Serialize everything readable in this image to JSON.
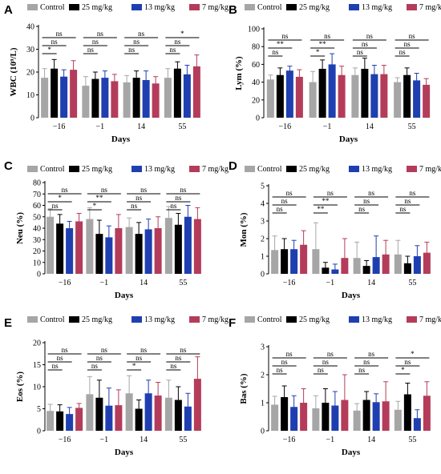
{
  "chart_data": [
    {
      "panel": "A",
      "type": "bar",
      "ylabel": "WBC (10⁹/L)",
      "xlabel": "Days",
      "categories": [
        "−16",
        "−1",
        "14",
        "55"
      ],
      "ylim": [
        0,
        40
      ],
      "yticks": [
        0,
        10,
        20,
        30,
        40
      ],
      "series": [
        {
          "name": "Control",
          "values": [
            17.5,
            14.0,
            15.5,
            17.5
          ],
          "errors": [
            4,
            4,
            3,
            4
          ]
        },
        {
          "name": "25 mg/kg",
          "values": [
            21.5,
            17.0,
            17.5,
            21.5
          ],
          "errors": [
            4,
            3,
            3,
            3
          ]
        },
        {
          "name": "13 mg/kg",
          "values": [
            18.0,
            17.5,
            16.5,
            19.0
          ],
          "errors": [
            3,
            3,
            4,
            4
          ]
        },
        {
          "name": "7 mg/kg",
          "values": [
            21.0,
            16.0,
            15.0,
            22.5
          ],
          "errors": [
            4,
            3,
            3,
            5
          ]
        }
      ],
      "significance": [
        {
          "group": 0,
          "left": 0,
          "right": 1,
          "text": "*"
        },
        {
          "group": 0,
          "left": 0,
          "right": 2,
          "text": "ns"
        },
        {
          "group": 0,
          "left": 0,
          "right": 3,
          "text": "ns"
        },
        {
          "group": 1,
          "left": 0,
          "right": 1,
          "text": "ns"
        },
        {
          "group": 1,
          "left": 0,
          "right": 2,
          "text": "ns"
        },
        {
          "group": 1,
          "left": 0,
          "right": 3,
          "text": "ns"
        },
        {
          "group": 2,
          "left": 0,
          "right": 1,
          "text": "ns"
        },
        {
          "group": 2,
          "left": 0,
          "right": 2,
          "text": "ns"
        },
        {
          "group": 2,
          "left": 0,
          "right": 3,
          "text": "ns"
        },
        {
          "group": 3,
          "left": 0,
          "right": 1,
          "text": "ns"
        },
        {
          "group": 3,
          "left": 0,
          "right": 2,
          "text": "ns"
        },
        {
          "group": 3,
          "left": 0,
          "right": 3,
          "text": "*"
        }
      ]
    },
    {
      "panel": "B",
      "type": "bar",
      "ylabel": "Lym (%)",
      "xlabel": "Days",
      "categories": [
        "−16",
        "−1",
        "14",
        "55"
      ],
      "ylim": [
        0,
        100
      ],
      "yticks": [
        0,
        20,
        40,
        60,
        80,
        100
      ],
      "series": [
        {
          "name": "Control",
          "values": [
            43,
            40,
            48,
            40
          ],
          "errors": [
            5,
            12,
            8,
            5
          ]
        },
        {
          "name": "25 mg/kg",
          "values": [
            48,
            55,
            55,
            48
          ],
          "errors": [
            8,
            10,
            12,
            8
          ]
        },
        {
          "name": "13 mg/kg",
          "values": [
            53,
            60,
            49,
            42
          ],
          "errors": [
            5,
            12,
            10,
            8
          ]
        },
        {
          "name": "7 mg/kg",
          "values": [
            46,
            48,
            49,
            37
          ],
          "errors": [
            8,
            10,
            10,
            7
          ]
        }
      ],
      "significance": [
        {
          "group": 0,
          "left": 0,
          "right": 1,
          "text": "ns"
        },
        {
          "group": 0,
          "left": 0,
          "right": 2,
          "text": "**"
        },
        {
          "group": 0,
          "left": 0,
          "right": 3,
          "text": "ns"
        },
        {
          "group": 1,
          "left": 0,
          "right": 1,
          "text": "*"
        },
        {
          "group": 1,
          "left": 0,
          "right": 2,
          "text": "**"
        },
        {
          "group": 1,
          "left": 0,
          "right": 3,
          "text": "ns"
        },
        {
          "group": 2,
          "left": 0,
          "right": 1,
          "text": "ns"
        },
        {
          "group": 2,
          "left": 0,
          "right": 2,
          "text": "ns"
        },
        {
          "group": 2,
          "left": 0,
          "right": 3,
          "text": "ns"
        },
        {
          "group": 3,
          "left": 0,
          "right": 1,
          "text": "ns"
        },
        {
          "group": 3,
          "left": 0,
          "right": 2,
          "text": "ns"
        },
        {
          "group": 3,
          "left": 0,
          "right": 3,
          "text": "ns"
        }
      ]
    },
    {
      "panel": "C",
      "type": "bar",
      "ylabel": "Neu (%)",
      "xlabel": "Days",
      "categories": [
        "−16",
        "−1",
        "14",
        "55"
      ],
      "ylim": [
        0,
        80
      ],
      "yticks": [
        0,
        10,
        20,
        30,
        40,
        50,
        60,
        70,
        80
      ],
      "series": [
        {
          "name": "Control",
          "values": [
            50,
            48,
            41,
            49
          ],
          "errors": [
            7,
            10,
            8,
            10
          ]
        },
        {
          "name": "25 mg/kg",
          "values": [
            44,
            35,
            35,
            43
          ],
          "errors": [
            8,
            12,
            10,
            10
          ]
        },
        {
          "name": "13 mg/kg",
          "values": [
            40,
            32,
            39,
            50
          ],
          "errors": [
            6,
            10,
            9,
            10
          ]
        },
        {
          "name": "7 mg/kg",
          "values": [
            46,
            40,
            40,
            48
          ],
          "errors": [
            7,
            12,
            10,
            10
          ]
        }
      ],
      "significance": [
        {
          "group": 0,
          "left": 0,
          "right": 1,
          "text": "ns"
        },
        {
          "group": 0,
          "left": 0,
          "right": 2,
          "text": "*"
        },
        {
          "group": 0,
          "left": 0,
          "right": 3,
          "text": "ns"
        },
        {
          "group": 1,
          "left": 0,
          "right": 1,
          "text": "*"
        },
        {
          "group": 1,
          "left": 0,
          "right": 2,
          "text": "**"
        },
        {
          "group": 1,
          "left": 0,
          "right": 3,
          "text": "ns"
        },
        {
          "group": 2,
          "left": 0,
          "right": 1,
          "text": "ns"
        },
        {
          "group": 2,
          "left": 0,
          "right": 2,
          "text": "ns"
        },
        {
          "group": 2,
          "left": 0,
          "right": 3,
          "text": "ns"
        },
        {
          "group": 3,
          "left": 0,
          "right": 1,
          "text": "ns"
        },
        {
          "group": 3,
          "left": 0,
          "right": 2,
          "text": "ns"
        },
        {
          "group": 3,
          "left": 0,
          "right": 3,
          "text": "ns"
        }
      ]
    },
    {
      "panel": "D",
      "type": "bar",
      "ylabel": "Mon (%)",
      "xlabel": "Days",
      "categories": [
        "−16",
        "−1",
        "14",
        "55"
      ],
      "ylim": [
        0,
        5
      ],
      "yticks": [
        0,
        1,
        2,
        3,
        4,
        5
      ],
      "series": [
        {
          "name": "Control",
          "values": [
            1.35,
            1.4,
            0.9,
            1.1
          ],
          "errors": [
            0.8,
            1.5,
            0.9,
            0.8
          ]
        },
        {
          "name": "25 mg/kg",
          "values": [
            1.4,
            0.35,
            0.45,
            0.6
          ],
          "errors": [
            0.6,
            0.3,
            0.3,
            0.4
          ]
        },
        {
          "name": "13 mg/kg",
          "values": [
            1.4,
            0.25,
            0.95,
            1.0
          ],
          "errors": [
            0.5,
            0.3,
            1.2,
            0.6
          ]
        },
        {
          "name": "7 mg/kg",
          "values": [
            1.65,
            0.9,
            1.1,
            1.2
          ],
          "errors": [
            0.8,
            1.1,
            0.8,
            0.6
          ]
        }
      ],
      "significance": [
        {
          "group": 0,
          "left": 0,
          "right": 1,
          "text": "ns"
        },
        {
          "group": 0,
          "left": 0,
          "right": 2,
          "text": "ns"
        },
        {
          "group": 0,
          "left": 0,
          "right": 3,
          "text": "ns"
        },
        {
          "group": 1,
          "left": 0,
          "right": 1,
          "text": "**"
        },
        {
          "group": 1,
          "left": 0,
          "right": 2,
          "text": "**"
        },
        {
          "group": 1,
          "left": 0,
          "right": 3,
          "text": "ns"
        },
        {
          "group": 2,
          "left": 0,
          "right": 1,
          "text": "ns"
        },
        {
          "group": 2,
          "left": 0,
          "right": 2,
          "text": "ns"
        },
        {
          "group": 2,
          "left": 0,
          "right": 3,
          "text": "ns"
        },
        {
          "group": 3,
          "left": 0,
          "right": 1,
          "text": "ns"
        },
        {
          "group": 3,
          "left": 0,
          "right": 2,
          "text": "ns"
        },
        {
          "group": 3,
          "left": 0,
          "right": 3,
          "text": "ns"
        }
      ]
    },
    {
      "panel": "E",
      "type": "bar",
      "ylabel": "Eos (%)",
      "xlabel": "Days",
      "categories": [
        "−16",
        "−1",
        "14",
        "55"
      ],
      "ylim": [
        0,
        20
      ],
      "yticks": [
        0,
        5,
        10,
        15,
        20
      ],
      "series": [
        {
          "name": "Control",
          "values": [
            4.5,
            8.3,
            8.5,
            7.5
          ],
          "errors": [
            1.5,
            4,
            4,
            4
          ]
        },
        {
          "name": "25 mg/kg",
          "values": [
            4.4,
            7.5,
            5.0,
            7.0
          ],
          "errors": [
            1.5,
            4,
            2,
            3
          ]
        },
        {
          "name": "13 mg/kg",
          "values": [
            3.8,
            5.7,
            8.5,
            5.5
          ],
          "errors": [
            1.5,
            4,
            3,
            3
          ]
        },
        {
          "name": "7 mg/kg",
          "values": [
            5.2,
            5.8,
            8.0,
            11.8
          ],
          "errors": [
            1.0,
            3.5,
            3,
            5
          ]
        }
      ],
      "significance": [
        {
          "group": 0,
          "left": 0,
          "right": 1,
          "text": "ns"
        },
        {
          "group": 0,
          "left": 0,
          "right": 2,
          "text": "ns"
        },
        {
          "group": 0,
          "left": 0,
          "right": 3,
          "text": "ns"
        },
        {
          "group": 1,
          "left": 0,
          "right": 1,
          "text": "ns"
        },
        {
          "group": 1,
          "left": 0,
          "right": 2,
          "text": "ns"
        },
        {
          "group": 1,
          "left": 0,
          "right": 3,
          "text": "ns"
        },
        {
          "group": 2,
          "left": 0,
          "right": 1,
          "text": "*"
        },
        {
          "group": 2,
          "left": 0,
          "right": 2,
          "text": "ns"
        },
        {
          "group": 2,
          "left": 0,
          "right": 3,
          "text": "ns"
        },
        {
          "group": 3,
          "left": 0,
          "right": 1,
          "text": "ns"
        },
        {
          "group": 3,
          "left": 0,
          "right": 2,
          "text": "ns"
        },
        {
          "group": 3,
          "left": 0,
          "right": 3,
          "text": "ns"
        }
      ]
    },
    {
      "panel": "F",
      "type": "bar",
      "ylabel": "Bas (%)",
      "xlabel": "Days",
      "categories": [
        "−16",
        "−1",
        "14",
        "55"
      ],
      "ylim": [
        0,
        3
      ],
      "yticks": [
        0,
        1,
        2,
        3
      ],
      "series": [
        {
          "name": "Control",
          "values": [
            0.93,
            0.8,
            0.72,
            0.75
          ],
          "errors": [
            0.3,
            0.45,
            0.25,
            0.3
          ]
        },
        {
          "name": "25 mg/kg",
          "values": [
            1.2,
            1.0,
            1.1,
            1.3
          ],
          "errors": [
            0.4,
            0.5,
            0.3,
            0.4
          ]
        },
        {
          "name": "13 mg/kg",
          "values": [
            0.85,
            0.9,
            1.02,
            0.45
          ],
          "errors": [
            0.4,
            0.5,
            0.3,
            0.3
          ]
        },
        {
          "name": "7 mg/kg",
          "values": [
            1.0,
            1.1,
            1.05,
            1.25
          ],
          "errors": [
            0.5,
            0.9,
            0.7,
            0.5
          ]
        }
      ],
      "significance": [
        {
          "group": 0,
          "left": 0,
          "right": 1,
          "text": "ns"
        },
        {
          "group": 0,
          "left": 0,
          "right": 2,
          "text": "ns"
        },
        {
          "group": 0,
          "left": 0,
          "right": 3,
          "text": "ns"
        },
        {
          "group": 1,
          "left": 0,
          "right": 1,
          "text": "ns"
        },
        {
          "group": 1,
          "left": 0,
          "right": 2,
          "text": "ns"
        },
        {
          "group": 1,
          "left": 0,
          "right": 3,
          "text": "ns"
        },
        {
          "group": 2,
          "left": 0,
          "right": 1,
          "text": "ns"
        },
        {
          "group": 2,
          "left": 0,
          "right": 2,
          "text": "ns"
        },
        {
          "group": 2,
          "left": 0,
          "right": 3,
          "text": "ns"
        },
        {
          "group": 3,
          "left": 0,
          "right": 1,
          "text": "*"
        },
        {
          "group": 3,
          "left": 0,
          "right": 2,
          "text": "ns"
        },
        {
          "group": 3,
          "left": 0,
          "right": 3,
          "text": "*"
        }
      ]
    }
  ],
  "series_colors": [
    "#a6a6a6",
    "#000000",
    "#1f3fb0",
    "#b43c5a"
  ],
  "legend": [
    "Control",
    "25 mg/kg",
    "13 mg/kg",
    "7 mg/kg"
  ]
}
